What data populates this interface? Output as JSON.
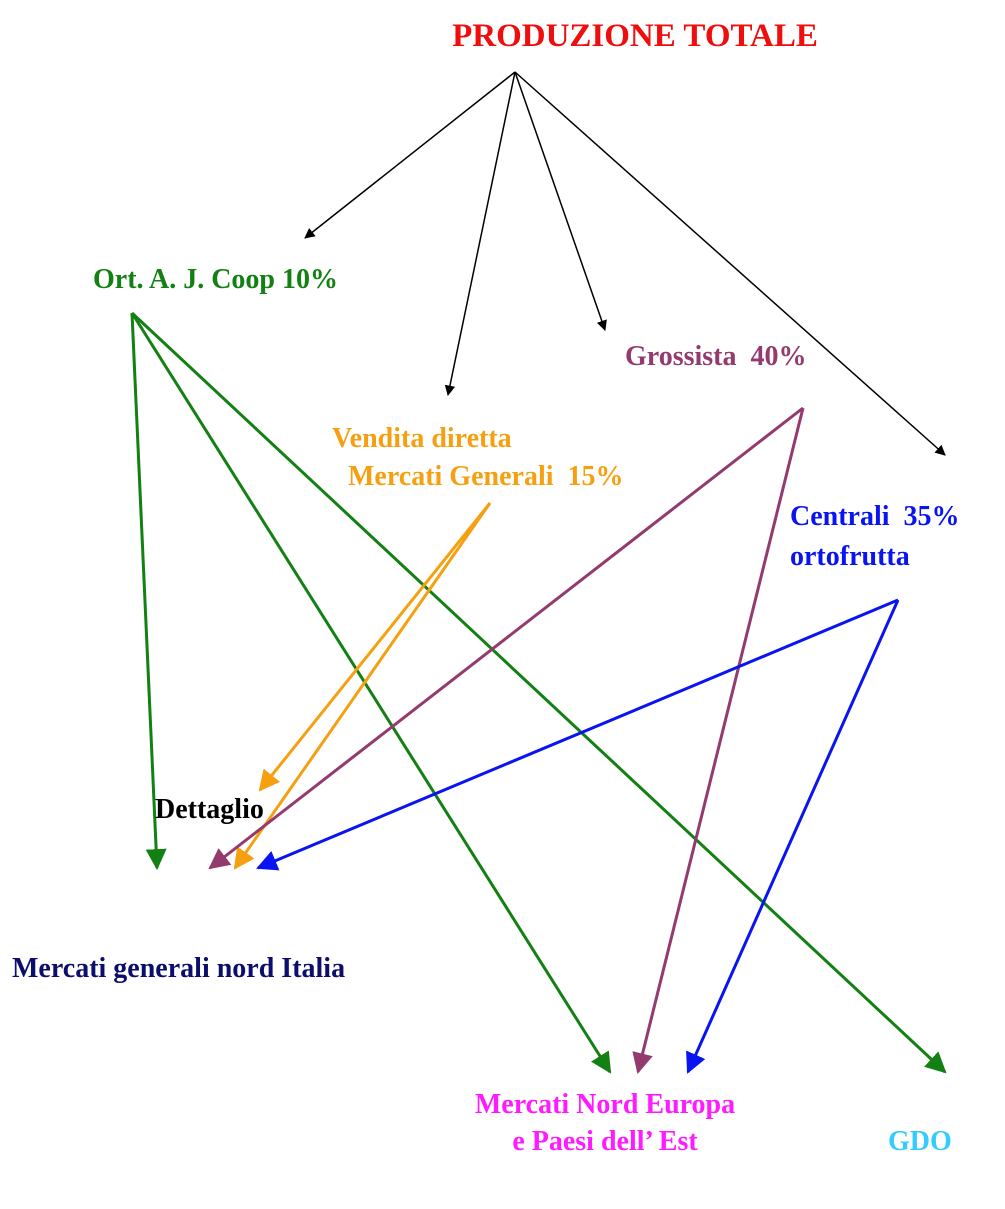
{
  "title": "PRODUZIONE TOTALE",
  "nodes": [
    {
      "lines": [
        "Ort. A. J. Coop 10%"
      ]
    },
    {
      "lines": [
        "Grossista  40%"
      ]
    },
    {
      "lines": [
        "Vendita diretta",
        "Mercati Generali  15%"
      ]
    },
    {
      "lines": [
        "Centrali  35%",
        "ortofrutta"
      ]
    },
    {
      "lines": [
        "Dettaglio"
      ]
    },
    {
      "lines": [
        "Mercati generali nord Italia"
      ]
    },
    {
      "lines": [
        "Mercati Nord Europa",
        "e Paesi dell’ Est"
      ]
    },
    {
      "lines": [
        "GDO"
      ]
    }
  ]
}
